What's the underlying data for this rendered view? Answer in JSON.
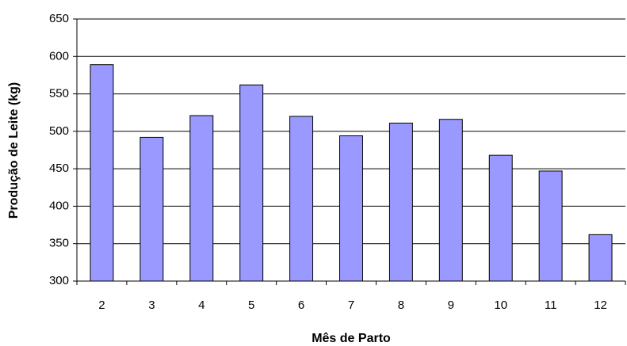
{
  "chart_data": {
    "type": "bar",
    "x_label": "Mês de Parto",
    "y_label": "Produção de Leite (kg)",
    "categories": [
      "2",
      "3",
      "4",
      "5",
      "6",
      "7",
      "8",
      "9",
      "10",
      "11",
      "12"
    ],
    "values": [
      589,
      492,
      521,
      562,
      520,
      494,
      511,
      516,
      468,
      447,
      362
    ],
    "color": "#9999ff",
    "ylim": [
      300,
      650
    ],
    "yticks": [
      300,
      350,
      400,
      450,
      500,
      550,
      600,
      650
    ],
    "grid": true
  }
}
